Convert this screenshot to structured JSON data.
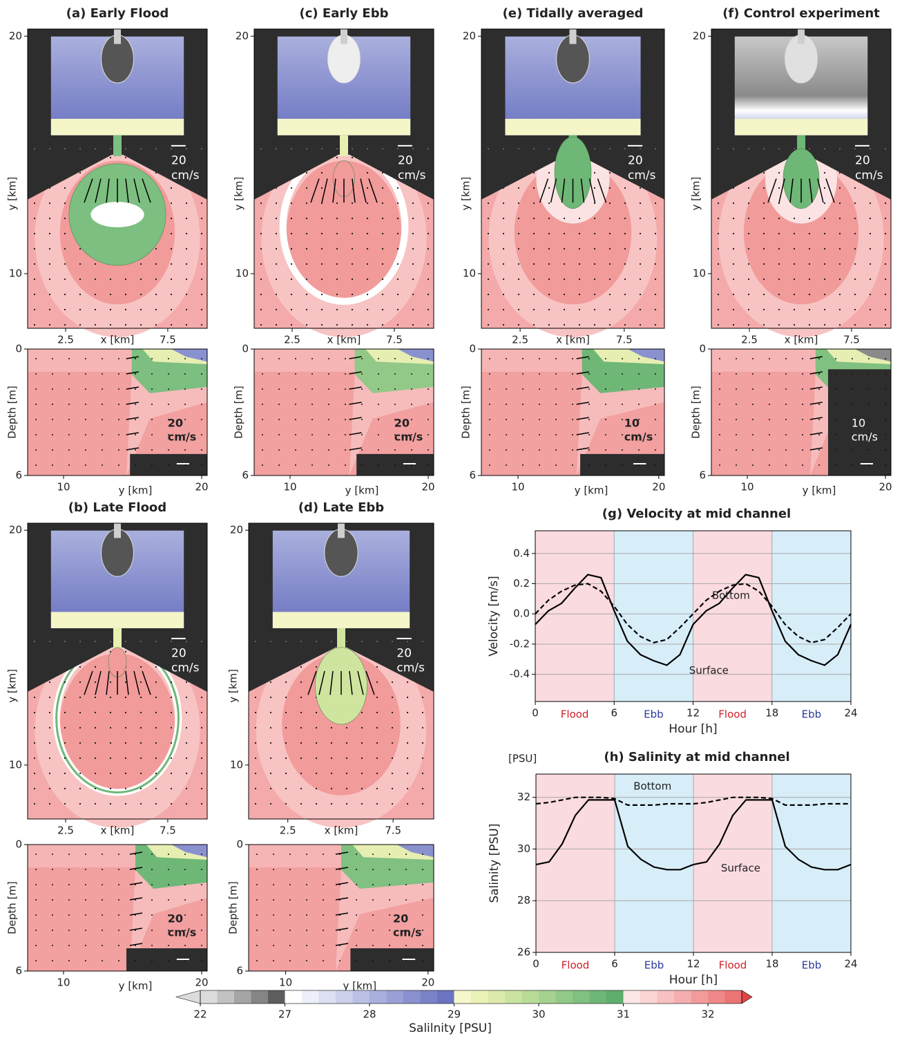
{
  "chart_data": [
    {
      "type": "map",
      "title": "(a) Early Flood",
      "xlabel": "x [km]",
      "ylabel": "y [km]",
      "xlim": [
        0.64,
        9.43
      ],
      "ylim": [
        7.7,
        20.3
      ],
      "xticks": [
        2.5,
        7.5
      ],
      "yticks": [
        10,
        20
      ],
      "scale_label": [
        "20",
        "cm/s"
      ]
    },
    {
      "type": "section",
      "xlabel": "y [km]",
      "ylabel": "Depth [m]",
      "xlim": [
        7.4,
        20.4
      ],
      "ylim": [
        6,
        0
      ],
      "xticks": [
        10,
        20
      ],
      "yticks": [
        0,
        6
      ],
      "scale_label": [
        "20",
        "cm/s"
      ]
    },
    {
      "type": "map",
      "title": "(c) Early Ebb",
      "xlabel": "x [km]",
      "ylabel": "y [km]",
      "xlim": [
        0.64,
        9.43
      ],
      "ylim": [
        7.7,
        20.3
      ],
      "xticks": [
        2.5,
        7.5
      ],
      "yticks": [
        10,
        20
      ],
      "scale_label": [
        "20",
        "cm/s"
      ]
    },
    {
      "type": "section",
      "xlabel": "y [km]",
      "ylabel": "Depth [m]",
      "xlim": [
        7.4,
        20.4
      ],
      "ylim": [
        6,
        0
      ],
      "xticks": [
        10,
        20
      ],
      "yticks": [
        0,
        6
      ],
      "scale_label": [
        "20",
        "cm/s"
      ]
    },
    {
      "type": "map",
      "title": "(e) Tidally averaged",
      "xlabel": "x [km]",
      "ylabel": "y [km]",
      "xlim": [
        0.64,
        9.43
      ],
      "ylim": [
        7.7,
        20.3
      ],
      "xticks": [
        2.5,
        7.5
      ],
      "yticks": [
        10,
        20
      ],
      "scale_label": [
        "20",
        "cm/s"
      ]
    },
    {
      "type": "section",
      "xlabel": "y [km]",
      "ylabel": "Depth [m]",
      "xlim": [
        7.4,
        20.4
      ],
      "ylim": [
        6,
        0
      ],
      "xticks": [
        10,
        20
      ],
      "yticks": [
        0,
        6
      ],
      "scale_label": [
        "10",
        "cm/s"
      ]
    },
    {
      "type": "map",
      "title": "(f) Control experiment",
      "xlabel": "x [km]",
      "ylabel": "y [km]",
      "xlim": [
        0.64,
        9.43
      ],
      "ylim": [
        7.7,
        20.3
      ],
      "xticks": [
        2.5,
        7.5
      ],
      "yticks": [
        10,
        20
      ],
      "scale_label": [
        "20",
        "cm/s"
      ]
    },
    {
      "type": "section",
      "xlabel": "y [km]",
      "ylabel": "Depth [m]",
      "xlim": [
        7.4,
        20.4
      ],
      "ylim": [
        6,
        0
      ],
      "xticks": [
        10,
        20
      ],
      "yticks": [
        0,
        6
      ],
      "scale_label": [
        "10",
        "cm/s"
      ]
    },
    {
      "type": "map",
      "title": "(b) Late Flood",
      "xlabel": "x [km]",
      "ylabel": "y [km]",
      "xlim": [
        0.64,
        9.43
      ],
      "ylim": [
        7.7,
        20.3
      ],
      "xticks": [
        2.5,
        7.5
      ],
      "yticks": [
        10,
        20
      ],
      "scale_label": [
        "20",
        "cm/s"
      ]
    },
    {
      "type": "section",
      "xlabel": "y [km]",
      "ylabel": "Depth [m]",
      "xlim": [
        7.4,
        20.4
      ],
      "ylim": [
        6,
        0
      ],
      "xticks": [
        10,
        20
      ],
      "yticks": [
        0,
        6
      ],
      "scale_label": [
        "20",
        "cm/s"
      ]
    },
    {
      "type": "map",
      "title": "(d) Late Ebb",
      "xlabel": "x [km]",
      "ylabel": "y [km]",
      "xlim": [
        0.64,
        9.43
      ],
      "ylim": [
        7.7,
        20.3
      ],
      "xticks": [
        2.5,
        7.5
      ],
      "yticks": [
        10,
        20
      ],
      "scale_label": [
        "20",
        "cm/s"
      ]
    },
    {
      "type": "section",
      "xlabel": "y [km]",
      "ylabel": "Depth [m]",
      "xlim": [
        7.4,
        20.4
      ],
      "ylim": [
        6,
        0
      ],
      "xticks": [
        10,
        20
      ],
      "yticks": [
        0,
        6
      ],
      "scale_label": [
        "20",
        "cm/s"
      ]
    },
    {
      "type": "line",
      "title": "(g) Velocity at mid channel",
      "xlabel": "Hour [h]",
      "ylabel": "Velocity [m/s]",
      "xlim": [
        0,
        24
      ],
      "ylim": [
        -0.58,
        0.55
      ],
      "xticks": [
        0,
        6,
        12,
        18,
        24
      ],
      "yticks": [
        -0.4,
        -0.2,
        {
          "value": 0,
          "label": "0.0"
        },
        0.2,
        0.4
      ],
      "grid": true,
      "bands": [
        {
          "start": 0,
          "end": 6,
          "label": "Flood",
          "color": "#fadbe0",
          "label_color": "#d0202a"
        },
        {
          "start": 6,
          "end": 12,
          "label": "Ebb",
          "color": "#d7eef9",
          "label_color": "#2a3a9a"
        },
        {
          "start": 12,
          "end": 18,
          "label": "Flood",
          "color": "#fadbe0",
          "label_color": "#d0202a"
        },
        {
          "start": 18,
          "end": 24,
          "label": "Ebb",
          "color": "#d7eef9",
          "label_color": "#2a3a9a"
        }
      ],
      "x": [
        0,
        1,
        2,
        3,
        4,
        5,
        6,
        7,
        8,
        9,
        10,
        11,
        12,
        13,
        14,
        15,
        16,
        17,
        18,
        19,
        20,
        21,
        22,
        23,
        24
      ],
      "series": [
        {
          "name": "Surface",
          "color": "#000000",
          "dash": false,
          "values": [
            -0.07,
            0.02,
            0.07,
            0.17,
            0.26,
            0.24,
            0.02,
            -0.18,
            -0.27,
            -0.31,
            -0.34,
            -0.27,
            -0.07,
            0.02,
            0.07,
            0.17,
            0.26,
            0.24,
            0.02,
            -0.18,
            -0.27,
            -0.31,
            -0.34,
            -0.27,
            -0.07
          ]
        },
        {
          "name": "Bottom",
          "color": "#000000",
          "dash": true,
          "values": [
            0.0,
            0.09,
            0.15,
            0.19,
            0.2,
            0.15,
            0.05,
            -0.07,
            -0.15,
            -0.19,
            -0.17,
            -0.09,
            0.0,
            0.09,
            0.15,
            0.19,
            0.2,
            0.15,
            0.05,
            -0.07,
            -0.15,
            -0.19,
            -0.17,
            -0.09,
            0.0
          ]
        }
      ]
    },
    {
      "type": "line",
      "title": "(h)  Salinity at mid channel",
      "unit_label": "[PSU]",
      "xlabel": "Hour [h]",
      "ylabel": "Salinity [PSU]",
      "xlim": [
        0,
        24
      ],
      "ylim": [
        26,
        32.9
      ],
      "xticks": [
        0,
        6,
        12,
        18,
        24
      ],
      "yticks": [
        26,
        28,
        30,
        32
      ],
      "grid": true,
      "bands": [
        {
          "start": 0,
          "end": 6,
          "label": "Flood",
          "color": "#fadbe0",
          "label_color": "#d0202a"
        },
        {
          "start": 6,
          "end": 12,
          "label": "Ebb",
          "color": "#d7eef9",
          "label_color": "#2a3a9a"
        },
        {
          "start": 12,
          "end": 18,
          "label": "Flood",
          "color": "#fadbe0",
          "label_color": "#d0202a"
        },
        {
          "start": 18,
          "end": 24,
          "label": "Ebb",
          "color": "#d7eef9",
          "label_color": "#2a3a9a"
        }
      ],
      "x": [
        0,
        1,
        2,
        3,
        4,
        5,
        6,
        7,
        8,
        9,
        10,
        11,
        12,
        13,
        14,
        15,
        16,
        17,
        18,
        19,
        20,
        21,
        22,
        23,
        24
      ],
      "series": [
        {
          "name": "Surface",
          "color": "#000000",
          "dash": false,
          "values": [
            29.4,
            29.5,
            30.2,
            31.3,
            31.9,
            31.9,
            31.9,
            30.1,
            29.6,
            29.3,
            29.2,
            29.2,
            29.4,
            29.5,
            30.2,
            31.3,
            31.9,
            31.9,
            31.9,
            30.1,
            29.6,
            29.3,
            29.2,
            29.2,
            29.4
          ]
        },
        {
          "name": "Bottom",
          "color": "#000000",
          "dash": true,
          "values": [
            31.75,
            31.8,
            31.9,
            32.0,
            32.0,
            32.0,
            31.95,
            31.7,
            31.7,
            31.7,
            31.75,
            31.75,
            31.75,
            31.8,
            31.9,
            32.0,
            32.0,
            32.0,
            31.95,
            31.7,
            31.7,
            31.7,
            31.75,
            31.75,
            31.75
          ]
        }
      ]
    },
    {
      "type": "colorbar",
      "label": "Salilnity [PSU]",
      "ticks": [
        22,
        27,
        28,
        29,
        30,
        31,
        32
      ],
      "colors": [
        "#dcdcdc",
        "#c2c2c2",
        "#a5a5a5",
        "#858585",
        "#5e5e5e",
        "#ffffff",
        "#eef0f9",
        "#dde0f2",
        "#ccd0eb",
        "#bbc0e4",
        "#aab0dd",
        "#9aa0d6",
        "#8a91cf",
        "#7b82c8",
        "#6c74c1",
        "#f6f8cc",
        "#ebf2b8",
        "#dcebab",
        "#cbe3a1",
        "#b9db98",
        "#a6d290",
        "#93c988",
        "#80c080",
        "#6eb777",
        "#5eae6e",
        "#fde6e6",
        "#fbd4d4",
        "#f8c1c1",
        "#f5aeae",
        "#f29b9b",
        "#ef8888",
        "#ec7474"
      ]
    }
  ]
}
